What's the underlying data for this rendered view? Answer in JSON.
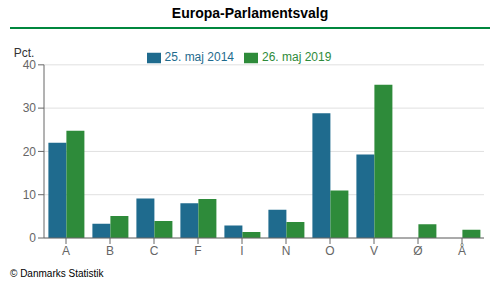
{
  "chart_data": {
    "type": "bar",
    "title": "Europa-Parlamentsvalg",
    "y_label": "Pct.",
    "categories": [
      "A",
      "B",
      "C",
      "F",
      "I",
      "N",
      "O",
      "V",
      "Ø",
      "Å"
    ],
    "series": [
      {
        "name": "25. maj 2014",
        "color": "#1F6B8E",
        "values": [
          22.0,
          3.3,
          9.1,
          8.0,
          2.9,
          6.5,
          28.8,
          19.3,
          0.0,
          0.0
        ]
      },
      {
        "name": "26. maj 2019",
        "color": "#2E8B3A",
        "values": [
          24.8,
          5.1,
          3.9,
          9.0,
          1.4,
          3.7,
          11.0,
          35.4,
          3.2,
          1.9
        ]
      }
    ],
    "ylim": [
      0,
      40
    ],
    "yticks": [
      0,
      10,
      20,
      30,
      40
    ],
    "grid": true,
    "legend": "top",
    "annotations": [
      "© Danmarks Statistik"
    ]
  }
}
